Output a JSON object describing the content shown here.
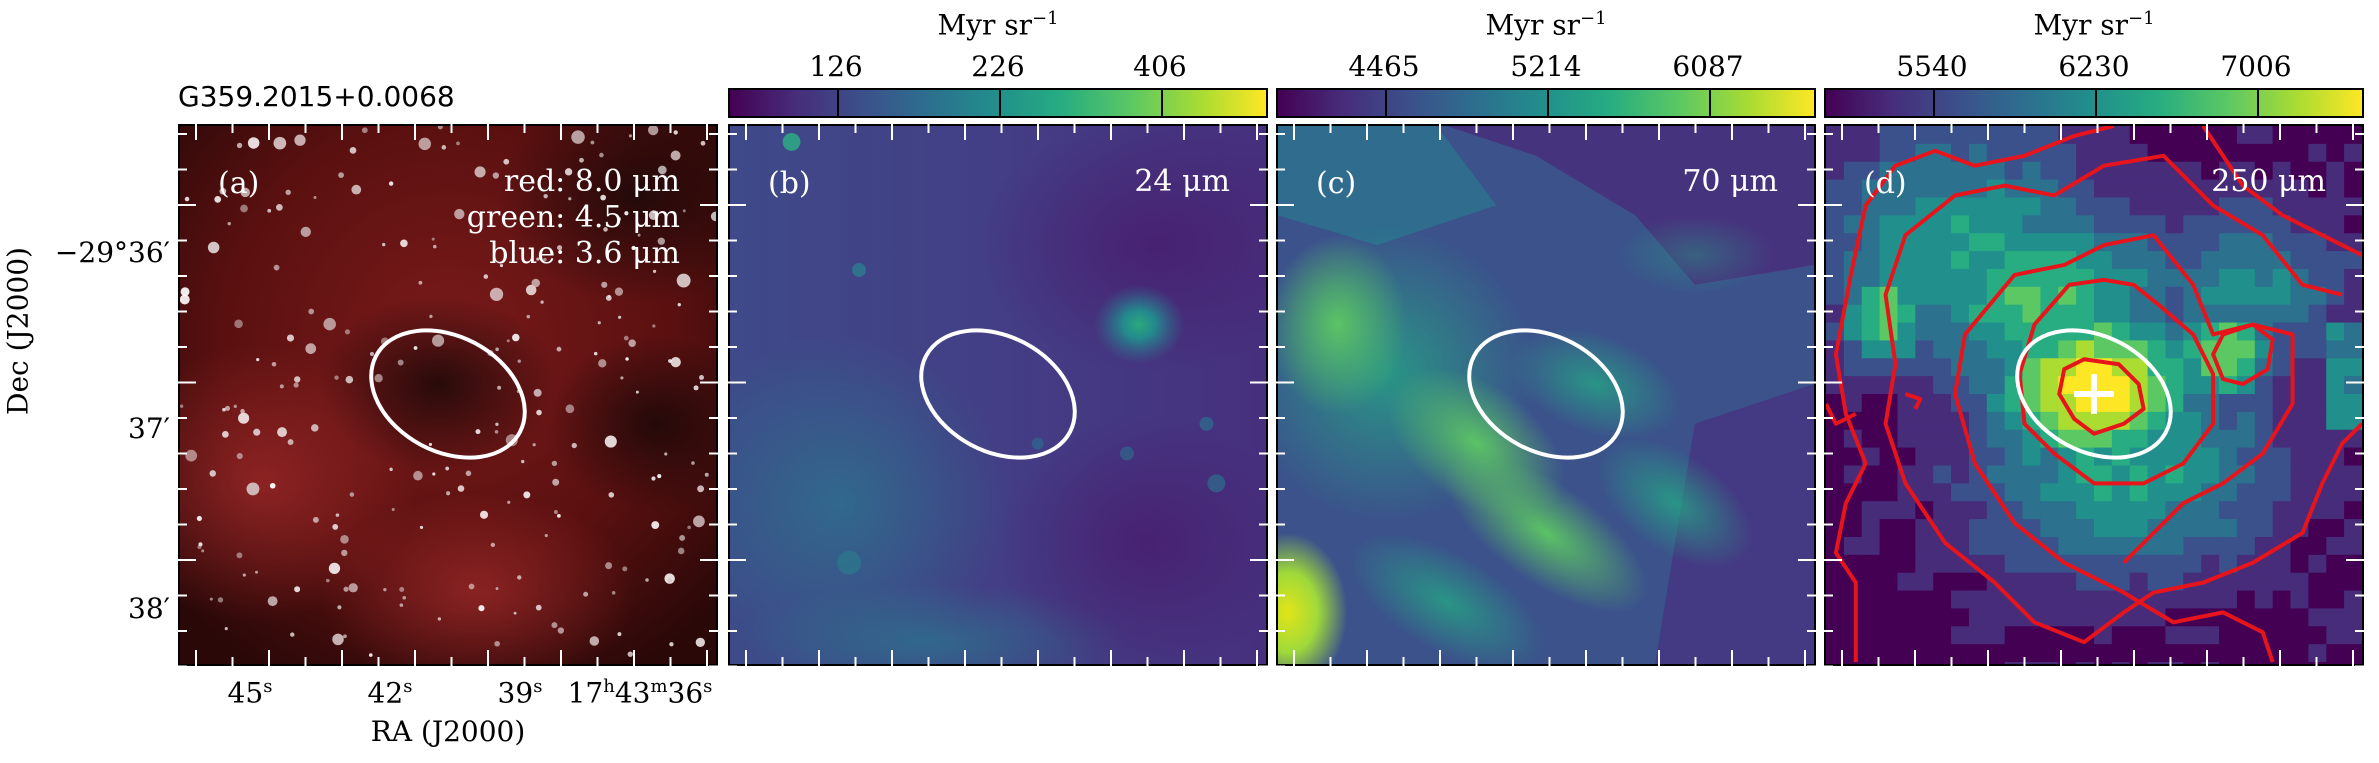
{
  "figure": {
    "source_name": "G359.2015+0.0068",
    "y_axis_label": "Dec (J2000)",
    "x_axis_label": "RA (J2000)",
    "y_ticks": [
      "−29°36′",
      "37′",
      "38′"
    ],
    "x_ticks": [
      {
        "main": "45",
        "sup": "s"
      },
      {
        "main": "42",
        "sup": "s"
      },
      {
        "main": "39",
        "sup": "s"
      },
      {
        "main": "17",
        "sup": "h",
        "main2": "43",
        "sup2": "m",
        "main3": "36",
        "sup3": "s"
      }
    ]
  },
  "panels": [
    {
      "id": "a",
      "label": "(a)",
      "legend": [
        "red: 8.0 μm",
        "green: 4.5 μm",
        "blue: 3.6 μm"
      ],
      "colorbar": null
    },
    {
      "id": "b",
      "label": "(b)",
      "wavelength": "24 μm",
      "colorbar": {
        "unit": "Myr sr",
        "unit_exp": "−1",
        "ticks": [
          "126",
          "226",
          "406"
        ]
      }
    },
    {
      "id": "c",
      "label": "(c)",
      "wavelength": "70 μm",
      "colorbar": {
        "unit": "Myr sr",
        "unit_exp": "−1",
        "ticks": [
          "4465",
          "5214",
          "6087"
        ]
      }
    },
    {
      "id": "d",
      "label": "(d)",
      "wavelength": "250 μm",
      "colorbar": {
        "unit": "Myr sr",
        "unit_exp": "−1",
        "ticks": [
          "5540",
          "6230",
          "7006"
        ]
      }
    }
  ],
  "colors": {
    "ellipse": "#ffffff",
    "contour": "#e8141b",
    "marker": "#ffffff"
  }
}
